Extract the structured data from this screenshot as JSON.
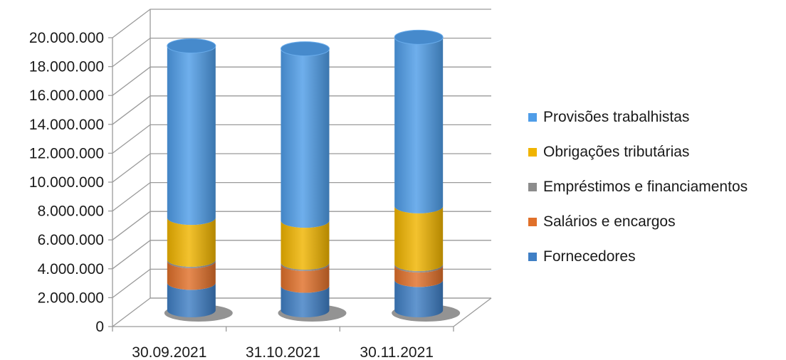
{
  "chart_data": {
    "type": "bar",
    "stacked": true,
    "style": "3d-cylinder",
    "title": "",
    "xlabel": "",
    "ylabel": "",
    "ylim": [
      0,
      20000000
    ],
    "y_ticks": [
      "0",
      "2.000.000",
      "4.000.000",
      "6.000.000",
      "8.000.000",
      "10.000.000",
      "12.000.000",
      "14.000.000",
      "16.000.000",
      "18.000.000",
      "20.000.000"
    ],
    "grid": true,
    "legend_position": "right",
    "categories": [
      "30.09.2021",
      "31.10.2021",
      "30.11.2021"
    ],
    "series": [
      {
        "name": "Fornecedores",
        "color": "#3F7FC5",
        "values": [
          1900000,
          1700000,
          2100000
        ]
      },
      {
        "name": "Salários e encargos",
        "color": "#E0702A",
        "values": [
          1500000,
          1500000,
          1000000
        ]
      },
      {
        "name": "Empréstimos e financiamentos",
        "color": "#8C8C8C",
        "values": [
          100000,
          100000,
          100000
        ]
      },
      {
        "name": "Obrigações tributárias",
        "color": "#F0B400",
        "values": [
          2900000,
          2900000,
          4000000
        ]
      },
      {
        "name": "Provisões trabalhistas",
        "color": "#4F9DE8",
        "values": [
          11900000,
          11900000,
          11700000
        ]
      }
    ]
  }
}
